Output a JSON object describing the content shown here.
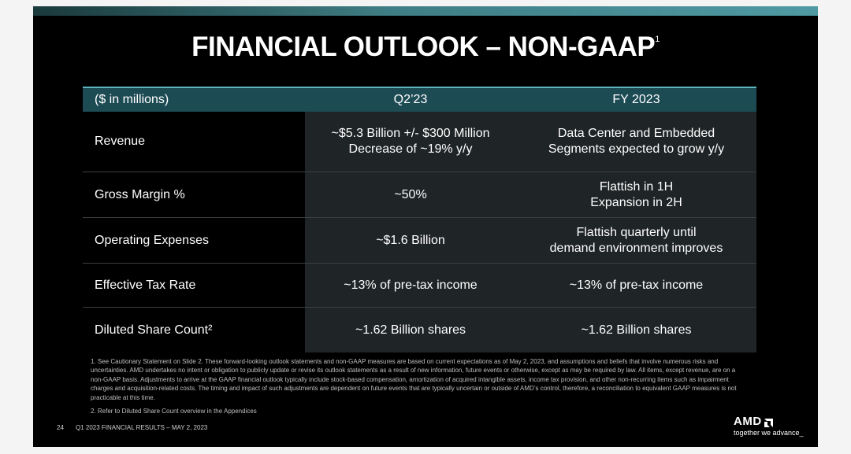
{
  "slide": {
    "title": "FINANCIAL OUTLOOK – NON-GAAP",
    "title_superscript": "1",
    "table": {
      "header": [
        "($ in millions)",
        "Q2’23",
        "FY 2023"
      ],
      "rows": [
        {
          "label": "Revenue",
          "q2": [
            "~$5.3 Billion +/- $300 Million",
            "Decrease of ~19% y/y"
          ],
          "fy": [
            "Data Center and Embedded",
            "Segments expected to grow y/y"
          ]
        },
        {
          "label": "Gross Margin %",
          "q2": [
            "~50%"
          ],
          "fy": [
            "Flattish in 1H",
            "Expansion in 2H"
          ]
        },
        {
          "label": "Operating Expenses",
          "q2": [
            "~$1.6 Billion"
          ],
          "fy": [
            "Flattish quarterly until",
            "demand environment improves"
          ]
        },
        {
          "label": "Effective Tax Rate",
          "q2": [
            "~13% of pre-tax income"
          ],
          "fy": [
            "~13% of pre-tax income"
          ]
        },
        {
          "label": "Diluted Share Count²",
          "q2": [
            "~1.62 Billion shares"
          ],
          "fy": [
            "~1.62 Billion shares"
          ]
        }
      ]
    },
    "footnotes": [
      "1.  See Cautionary Statement on Slide 2. These forward-looking outlook statements and non-GAAP measures are based on current expectations as of May 2, 2023, and assumptions and beliefs that involve numerous risks and uncertainties. AMD undertakes no intent or obligation to publicly update or revise its outlook statements as a result of new information, future events or otherwise, except as may be required by law. All items, except revenue, are on a non-GAAP basis. Adjustments to arrive at the GAAP financial outlook typically include stock-based compensation, amortization of acquired intangible assets, income tax provision, and other non-recurring items such as impairment charges and acquisition-related costs. The timing and impact of such adjustments are dependent on future events that are typically uncertain or outside of AMD’s control, therefore, a reconciliation to equivalent GAAP measures is not practicable at this time.",
      "2.  Refer to Diluted Share Count overview in the Appendices"
    ],
    "footer": {
      "page_number": "24",
      "text": "Q1 2023 FINANCIAL RESULTS – MAY 2, 2023"
    },
    "logo": {
      "wordmark": "AMD",
      "tagline": "together we advance_"
    }
  },
  "colors": {
    "header_bg": "#1d4b54",
    "header_line": "#5fb3bd",
    "cell_bg": "#1f2426"
  }
}
